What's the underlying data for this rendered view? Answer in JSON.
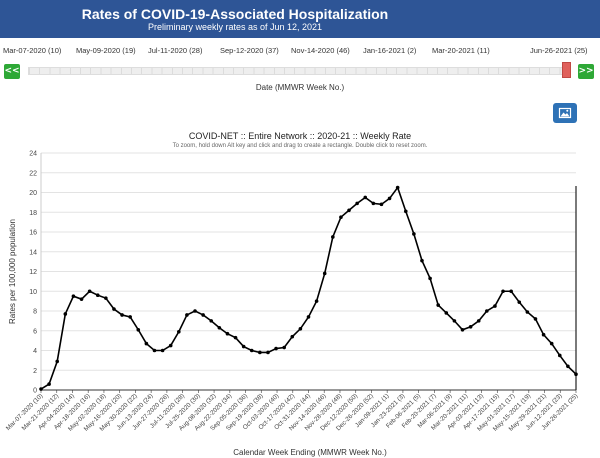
{
  "header": {
    "title": "Rates of COVID-19-Associated Hospitalization",
    "subtitle": "Preliminary weekly rates as of Jun 12, 2021"
  },
  "slider": {
    "date_labels": [
      "Mar-07-2020 (10)",
      "May-09-2020 (19)",
      "Jul-11-2020 (28)",
      "Sep-12-2020 (37)",
      "Nov-14-2020 (46)",
      "Jan-16-2021 (2)",
      "Mar-20-2021 (11)",
      "Jun-26-2021 (25)"
    ],
    "prev_label": "<<",
    "next_label": ">>",
    "axis_title": "Date (MMWR Week No.)"
  },
  "colors": {
    "header_bg": "#2e5596",
    "nav_btn": "#2ea836",
    "thumb": "#e0615c",
    "image_btn": "#2e72b6",
    "series_line": "#000000"
  },
  "icons": {
    "image_button": "image-icon"
  },
  "chart_data": {
    "type": "line",
    "title": "COVID-NET :: Entire Network :: 2020-21 :: Weekly Rate",
    "subtitle": "To zoom, hold down Alt key and click and drag to create a rectangle. Double click to reset zoom.",
    "xlabel": "Calendar Week Ending (MMWR Week No.)",
    "ylabel": "Rates per 100,000 population",
    "ylim": [
      0,
      24
    ],
    "yticks": [
      0,
      2,
      4,
      6,
      8,
      10,
      12,
      14,
      16,
      18,
      20,
      22,
      24
    ],
    "grid": true,
    "x_tick_labels": [
      "Mar-07-2020 (10)",
      "Mar-21-2020 (12)",
      "Apr-04-2020 (14)",
      "Apr-18-2020 (16)",
      "May-02-2020 (18)",
      "May-16-2020 (20)",
      "May-30-2020 (22)",
      "Jun-13-2020 (24)",
      "Jun-27-2020 (26)",
      "Jul-11-2020 (28)",
      "Jul-25-2020 (30)",
      "Aug-08-2020 (32)",
      "Aug-22-2020 (34)",
      "Sep-05-2020 (36)",
      "Sep-19-2020 (38)",
      "Oct-03-2020 (40)",
      "Oct-17-2020 (42)",
      "Oct-31-2020 (44)",
      "Nov-14-2020 (46)",
      "Nov-28-2020 (48)",
      "Dec-12-2020 (50)",
      "Dec-26-2020 (52)",
      "Jan-09-2021 (1)",
      "Jan-23-2021 (3)",
      "Feb-06-2021 (5)",
      "Feb-20-2021 (7)",
      "Mar-06-2021 (9)",
      "Mar-20-2021 (11)",
      "Apr-03-2021 (13)",
      "Apr-17-2021 (15)",
      "May-01-2021 (17)",
      "May-15-2021 (19)",
      "May-29-2021 (21)",
      "Jun-12-2021 (23)",
      "Jun-26-2021 (25)"
    ],
    "series": [
      {
        "values": [
          0.1,
          0.6,
          2.9,
          7.7,
          9.5,
          9.2,
          10.0,
          9.6,
          9.3,
          8.2,
          7.6,
          7.4,
          6.1,
          4.7,
          4.0,
          4.0,
          4.5,
          5.9,
          7.6,
          8.0,
          7.6,
          7.0,
          6.3,
          5.7,
          5.3,
          4.4,
          4.0,
          3.8,
          3.8,
          4.2,
          4.3,
          5.4,
          6.2,
          7.4,
          9.0,
          11.8,
          15.5,
          17.5,
          18.2,
          18.9,
          19.5,
          18.9,
          18.8,
          19.4,
          20.5,
          18.1,
          15.8,
          13.1,
          11.3,
          8.6,
          7.8,
          7.0,
          6.1,
          6.4,
          7.0,
          8.0,
          8.5,
          10.0,
          10.0,
          8.9,
          7.9,
          7.2,
          5.6,
          4.7,
          3.5,
          2.4,
          1.6
        ]
      }
    ]
  }
}
